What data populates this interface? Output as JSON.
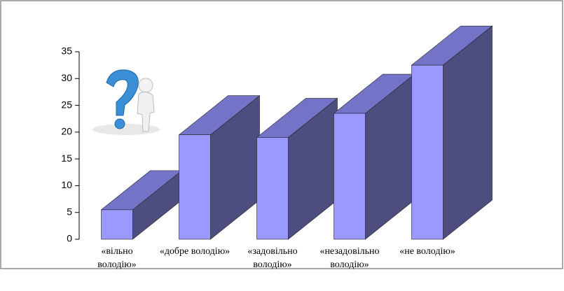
{
  "chart_data": {
    "type": "bar3d",
    "categories": [
      "«вільно володію»",
      "«добре володію»",
      "«задовільно володію»",
      "«незадовільно володію»",
      "«не володію»"
    ],
    "values": [
      5.5,
      19.5,
      19,
      23.5,
      32.5
    ],
    "color": "#9999ff",
    "ylim": [
      0,
      35
    ],
    "yticks": [
      0,
      5,
      10,
      15,
      20,
      25,
      30,
      35
    ]
  }
}
